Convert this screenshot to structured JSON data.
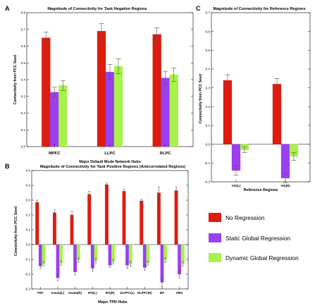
{
  "colors": {
    "No Regression": "#dd1c10",
    "Static Global Regression": "#9b3ff0",
    "Dynamic Global Regression": "#a8f24a"
  },
  "legend": {
    "items": [
      "No Regression",
      "Static Global Regression",
      "Dynamic Global Regression"
    ]
  },
  "chart_data": [
    {
      "id": "A",
      "type": "bar",
      "label": "A",
      "title": "Magnitude of Connectivity for Task Negative Regions",
      "ylabel": "Connectivity from PCC Seed",
      "xlabel": "Major Default Mode Network Hubs",
      "ylim": [
        0,
        0.8
      ],
      "yticks": [
        0,
        0.1,
        0.2,
        0.3,
        0.4,
        0.5,
        0.6,
        0.7,
        0.8
      ],
      "categories": [
        "MPFC",
        "LLPC",
        "RLPC"
      ],
      "series": [
        {
          "name": "No Regression",
          "values": [
            0.65,
            0.69,
            0.67
          ],
          "errors": [
            0.035,
            0.045,
            0.04
          ]
        },
        {
          "name": "Static Global Regression",
          "values": [
            0.325,
            0.445,
            0.41
          ],
          "errors": [
            0.03,
            0.045,
            0.04
          ]
        },
        {
          "name": "Dynamic Global Regression",
          "values": [
            0.365,
            0.48,
            0.43
          ],
          "errors": [
            0.03,
            0.045,
            0.04
          ]
        }
      ]
    },
    {
      "id": "C",
      "type": "bar",
      "label": "C",
      "title": "Magnitude of Connectivity for Reference Regions",
      "ylabel": "Connectivity from PCC Seed",
      "xlabel": "Reference Regions",
      "ylim": [
        -0.2,
        0.7
      ],
      "yticks": [
        -0.2,
        -0.1,
        0,
        0.1,
        0.2,
        0.3,
        0.4,
        0.5,
        0.6,
        0.7
      ],
      "categories": [
        "VIS(L)",
        "VIS(R)"
      ],
      "series": [
        {
          "name": "No Regression",
          "values": [
            0.34,
            0.32
          ],
          "errors": [
            0.03,
            0.03
          ]
        },
        {
          "name": "Static Global Regression",
          "values": [
            -0.14,
            -0.18
          ],
          "errors": [
            0.025,
            0.025
          ]
        },
        {
          "name": "Dynamic Global Regression",
          "values": [
            -0.03,
            -0.065
          ],
          "errors": [
            0.015,
            0.02
          ]
        }
      ]
    },
    {
      "id": "B",
      "type": "bar",
      "label": "B",
      "title": "Magnitude of Connectivity for Task Positive Regions (Anticorrelated Regions)",
      "ylabel": "Connectivity from PCC Seed",
      "xlabel": "Major TPN Hubs",
      "ylim": [
        -0.3,
        0.5
      ],
      "yticks": [
        -0.3,
        -0.2,
        -0.1,
        0,
        0.1,
        0.2,
        0.3,
        0.4,
        0.5
      ],
      "categories": [
        "FEF",
        "Insula(L)",
        "Insula(R)",
        "IPS(L)",
        "IPS(R)",
        "DLPFC(L)",
        "DLPFC(R)",
        "MT",
        "SMA"
      ],
      "series": [
        {
          "name": "No Regression",
          "values": [
            0.285,
            0.215,
            0.2,
            0.34,
            0.405,
            0.36,
            0.295,
            0.35,
            0.365
          ],
          "errors": [
            0.015,
            0.02,
            0.025,
            0.02,
            0.01,
            0.015,
            0.01,
            0.04,
            0.025
          ]
        },
        {
          "name": "Static Global Regression",
          "values": [
            -0.145,
            -0.225,
            -0.185,
            -0.16,
            -0.14,
            -0.14,
            -0.155,
            -0.255,
            -0.2
          ],
          "errors": [
            0.015,
            0.02,
            0.02,
            0.02,
            0.015,
            0.02,
            0.02,
            0.03,
            0.025
          ]
        },
        {
          "name": "Dynamic Global Regression",
          "values": [
            -0.13,
            -0.125,
            -0.105,
            -0.11,
            -0.115,
            -0.13,
            -0.125,
            -0.105,
            -0.13
          ],
          "errors": [
            0.015,
            0.015,
            0.015,
            0.015,
            0.015,
            0.015,
            0.015,
            0.015,
            0.015
          ]
        }
      ]
    }
  ]
}
